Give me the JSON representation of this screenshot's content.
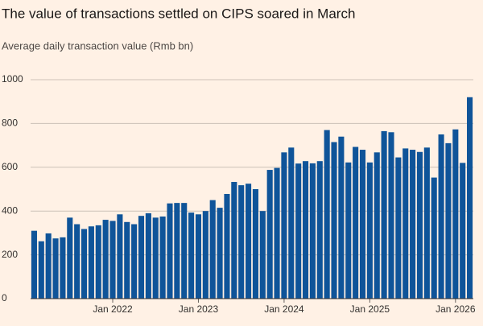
{
  "chart_data": {
    "type": "bar",
    "title": "The value of transactions settled on CIPS soared in March",
    "subtitle": "Average daily transaction value (Rmb bn)",
    "categories": [
      null,
      null,
      null,
      null,
      null,
      null,
      null,
      null,
      null,
      null,
      null,
      "Jan 2022",
      null,
      null,
      null,
      null,
      null,
      null,
      null,
      null,
      null,
      null,
      null,
      "Jan 2023",
      null,
      null,
      null,
      null,
      null,
      null,
      null,
      null,
      null,
      null,
      null,
      "Jan 2024",
      null,
      null,
      null,
      null,
      null,
      null,
      null,
      null,
      null,
      null,
      null,
      "Jan 2025",
      null,
      null,
      null,
      null,
      null,
      null,
      null,
      null,
      null,
      null,
      null,
      "Jan 2026",
      null,
      null
    ],
    "values": [
      310,
      262,
      298,
      275,
      280,
      370,
      340,
      318,
      330,
      335,
      360,
      355,
      385,
      350,
      340,
      378,
      390,
      370,
      375,
      435,
      437,
      437,
      393,
      385,
      400,
      450,
      415,
      478,
      533,
      518,
      525,
      500,
      400,
      588,
      597,
      668,
      690,
      617,
      628,
      618,
      628,
      770,
      715,
      740,
      622,
      693,
      680,
      622,
      668,
      765,
      760,
      645,
      686,
      680,
      670,
      690,
      553,
      750,
      710,
      773,
      620,
      920
    ],
    "color": "#0f5499",
    "ylim": [
      0,
      1000
    ],
    "yticks": [
      0,
      200,
      400,
      600,
      800,
      1000
    ],
    "grid": true
  }
}
